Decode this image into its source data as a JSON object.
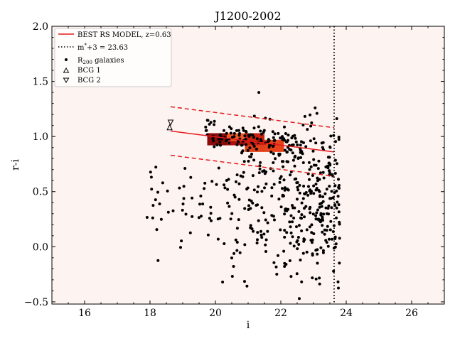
{
  "chart_data": {
    "type": "scatter",
    "title": "J1200-2002",
    "xlabel": "i",
    "ylabel": "r-i",
    "xlim": [
      15,
      27
    ],
    "ylim": [
      -0.52,
      2.0
    ],
    "xticks": [
      16,
      18,
      20,
      22,
      24,
      26
    ],
    "yticks": [
      -0.5,
      0.0,
      0.5,
      1.0,
      1.5,
      2.0
    ],
    "xtick_labels": [
      "16",
      "18",
      "20",
      "22",
      "24",
      "26"
    ],
    "ytick_labels": [
      "−0.5",
      "0.0",
      "0.5",
      "1.0",
      "1.5",
      "2.0"
    ],
    "grid": false,
    "background_color": "#fdf3f0",
    "legend": {
      "placement": "top-left",
      "entries": [
        {
          "label": "BEST RS MODEL, z=0.63",
          "style": "red-line"
        },
        {
          "label": "m*+3 = 23.63",
          "style": "dotted-line"
        },
        {
          "label": "R200 galaxies",
          "style": "dot"
        },
        {
          "label": "BCG 1",
          "style": "triangle-up"
        },
        {
          "label": "BCG 2",
          "style": "triangle-down"
        }
      ]
    },
    "rs_model": {
      "x": [
        18.63,
        23.63
      ],
      "y": [
        1.05,
        0.86
      ],
      "upper_y": [
        1.27,
        1.08
      ],
      "lower_y": [
        0.83,
        0.64
      ],
      "color": "#e31a1c"
    },
    "mag_limit": 23.63,
    "bcg1": {
      "x": 18.6,
      "y": 1.08
    },
    "bcg2": {
      "x": 18.63,
      "y": 1.13
    },
    "density_bins": [
      {
        "x0": 19.75,
        "x1": 20.35,
        "y0": 0.92,
        "y1": 1.03,
        "color": "#8b0a0a"
      },
      {
        "x0": 20.35,
        "x1": 20.9,
        "y0": 0.92,
        "y1": 1.03,
        "color": "#b01010"
      },
      {
        "x0": 20.9,
        "x1": 21.5,
        "y0": 0.92,
        "y1": 1.03,
        "color": "#cc2010"
      },
      {
        "x0": 21.5,
        "x1": 22.1,
        "y0": 0.86,
        "y1": 0.97,
        "color": "#e8421a"
      },
      {
        "x0": 20.9,
        "x1": 21.5,
        "y0": 0.86,
        "y1": 0.92,
        "color": "#e0401a"
      },
      {
        "x0": 20.35,
        "x1": 20.9,
        "y0": 0.96,
        "y1": 1.03,
        "color": "#f05a28"
      }
    ],
    "galaxies_seed": 1200,
    "galaxies_count": 560
  }
}
